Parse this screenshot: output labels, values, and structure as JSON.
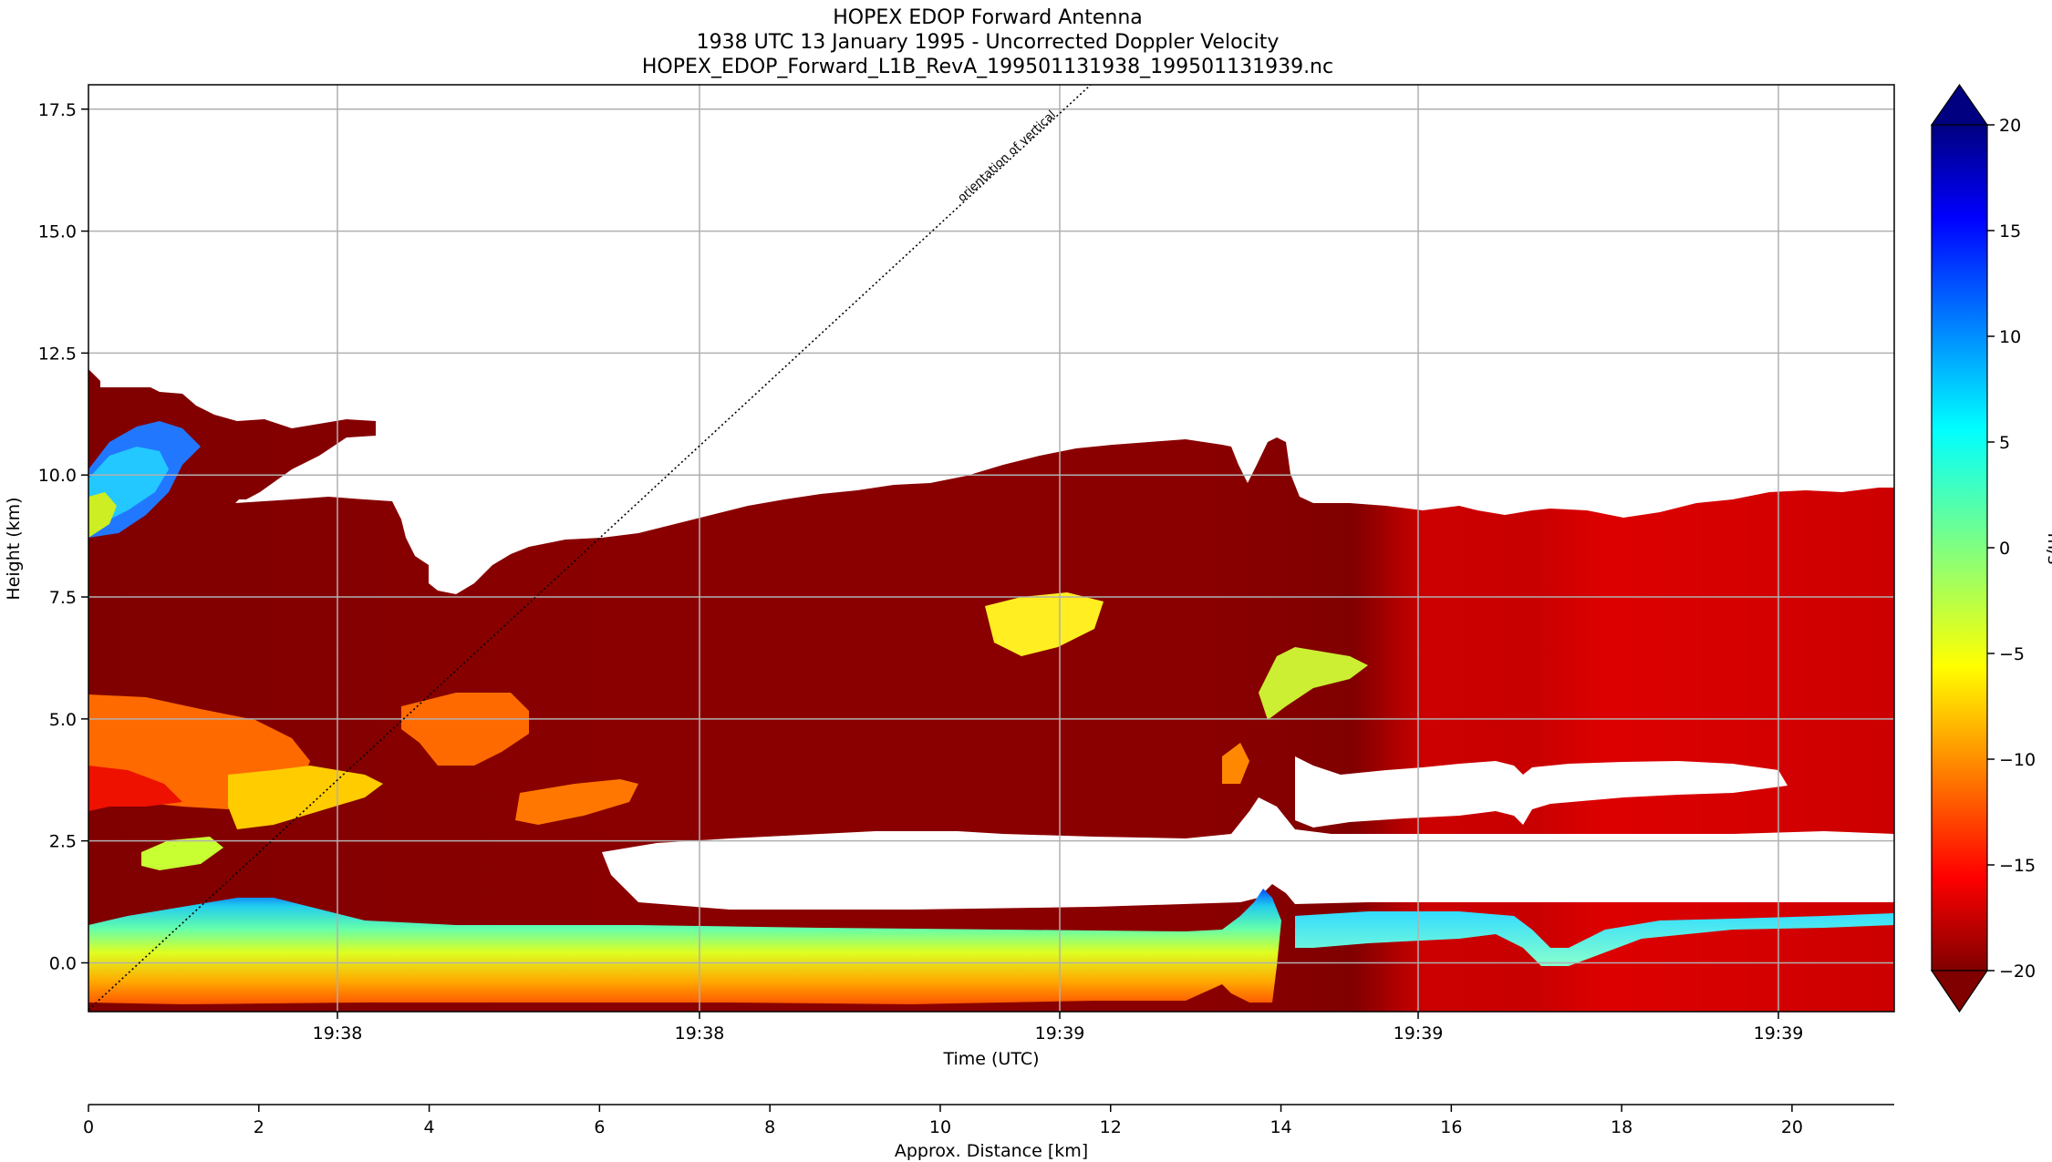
{
  "chart_data": {
    "type": "heatmap",
    "title_lines": [
      "HOPEX EDOP Forward Antenna",
      "1938 UTC 13 January 1995 - Uncorrected Doppler Velocity",
      "HOPEX_EDOP_Forward_L1B_RevA_199501131938_199501131939.nc"
    ],
    "xlabel": "Time (UTC)",
    "ylabel": "Height (km)",
    "x2label": "Approx. Distance [km]",
    "x_tick_labels": [
      "19:38",
      "19:38",
      "19:39",
      "19:39",
      "19:39"
    ],
    "x2_ticks": [
      0,
      2,
      4,
      6,
      8,
      10,
      12,
      14,
      16,
      18,
      20
    ],
    "x2lim": [
      0,
      21.2
    ],
    "y_ticks": [
      0.0,
      2.5,
      5.0,
      7.5,
      10.0,
      12.5,
      15.0,
      17.5
    ],
    "ylim": [
      -1.0,
      18.0
    ],
    "grid": true,
    "annotation": "orientation of vertical",
    "colorbar": {
      "label": "m/s",
      "ticks": [
        -20,
        -15,
        -10,
        -5,
        0,
        5,
        10,
        15,
        20
      ],
      "range": [
        -20,
        20
      ],
      "colormap": "jet",
      "extend": "both"
    },
    "colors": {
      "dark_red": "#800000",
      "red": "#cc0000",
      "orange": "#ff6a00",
      "yellow": "#e6ff1a",
      "cyan": "#22e0e0",
      "blue": "#0050ff"
    }
  }
}
